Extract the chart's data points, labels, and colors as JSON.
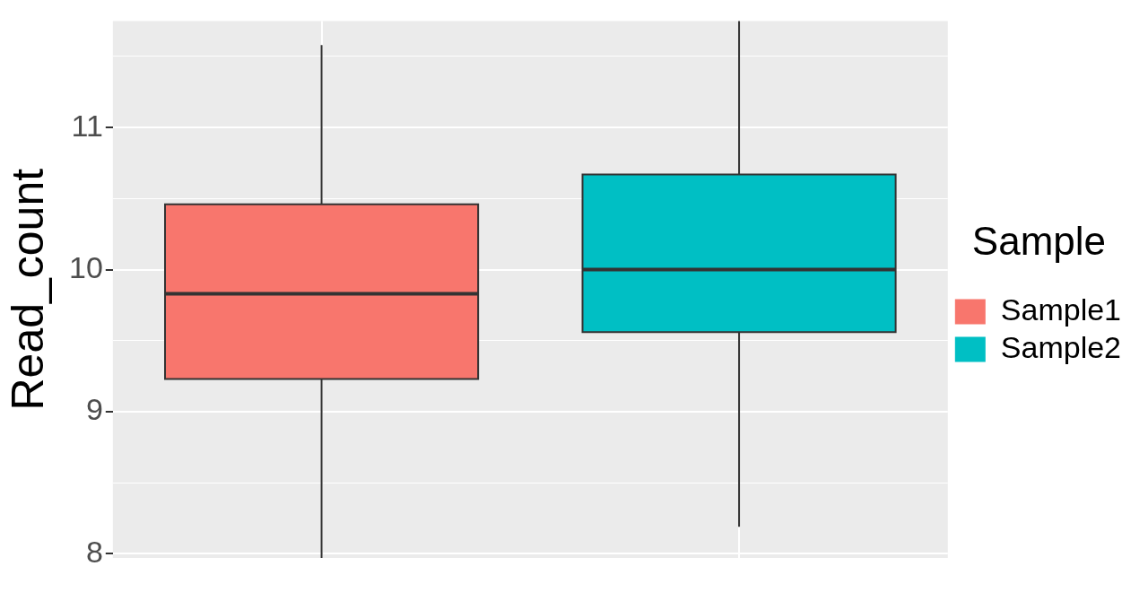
{
  "chart_data": {
    "type": "box",
    "ylabel": "Read_count",
    "legend_title": "Sample",
    "legend": "right",
    "grid": true,
    "categories": [
      null,
      null
    ],
    "ylim": [
      7.97,
      11.75
    ],
    "yticks": [
      8,
      {
        "value": 8.5,
        "label": null
      },
      9,
      {
        "value": 9.5,
        "label": null
      },
      10,
      {
        "value": 10.5,
        "label": null
      },
      11,
      {
        "value": 11.5,
        "label": null
      }
    ],
    "series": [
      {
        "name": "Sample1",
        "color": "#f8766d",
        "boxes": [
          {
            "low": 7.97,
            "q1": 9.23,
            "median": 9.83,
            "q3": 10.46,
            "high": 11.58
          },
          null
        ]
      },
      {
        "name": "Sample2",
        "color": "#00bfc4",
        "boxes": [
          null,
          {
            "low": 8.19,
            "q1": 9.56,
            "median": 10.0,
            "q3": 10.67,
            "high": 11.75
          }
        ]
      }
    ]
  }
}
